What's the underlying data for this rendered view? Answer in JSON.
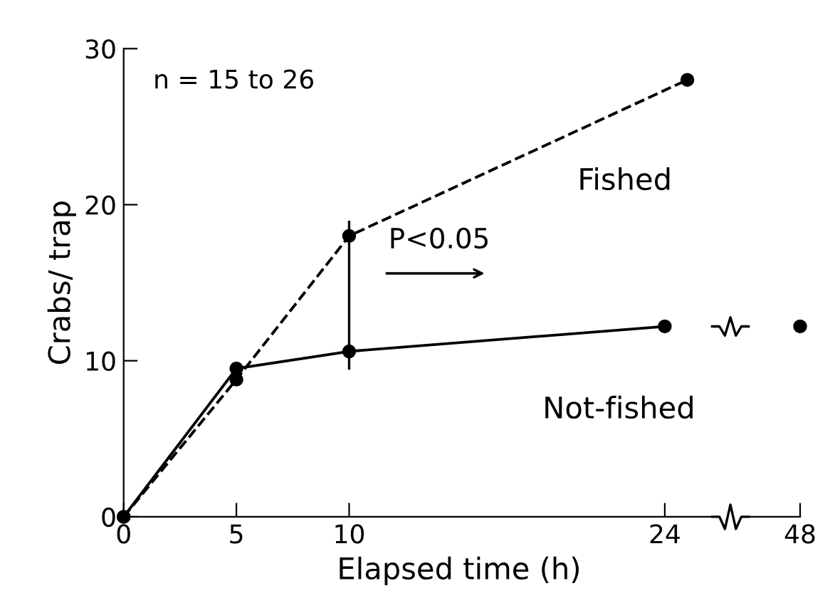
{
  "chart_data": [
    {
      "type": "line",
      "xlabel": "Elapsed time (h)",
      "ylabel": "Crabs/ trap",
      "xlim": [
        0,
        26.1
      ],
      "xticks": [
        0,
        5,
        10,
        24
      ],
      "ylim": [
        0,
        30
      ],
      "yticks": [
        0,
        10,
        20,
        30
      ],
      "grid": false,
      "legend": false,
      "marker": "circle",
      "annotations": [
        "n = 15 to 26",
        "P<0.05"
      ],
      "series": [
        {
          "name": "Fished",
          "color": "#000000",
          "line_style": "dashed",
          "x": [
            0,
            5,
            10,
            25
          ],
          "values": [
            0,
            8.8,
            18.0,
            28.0
          ]
        },
        {
          "name": "Not-fished",
          "color": "#000000",
          "line_style": "solid",
          "x": [
            0,
            5,
            10,
            24
          ],
          "values": [
            0,
            9.5,
            10.6,
            12.2
          ]
        },
        {
          "color": "#000000",
          "line_style": "solid",
          "marker": "none",
          "x": [
            10,
            10
          ],
          "values": [
            9.5,
            18.9
          ]
        }
      ]
    },
    {
      "type": "line",
      "categories": [
        "48"
      ],
      "ylim": [
        0,
        30
      ],
      "tick_labels": "x",
      "marker": "circle",
      "series": [
        {
          "color": "#000000",
          "line_style": "solid",
          "values": [
            12.2
          ]
        }
      ]
    }
  ]
}
